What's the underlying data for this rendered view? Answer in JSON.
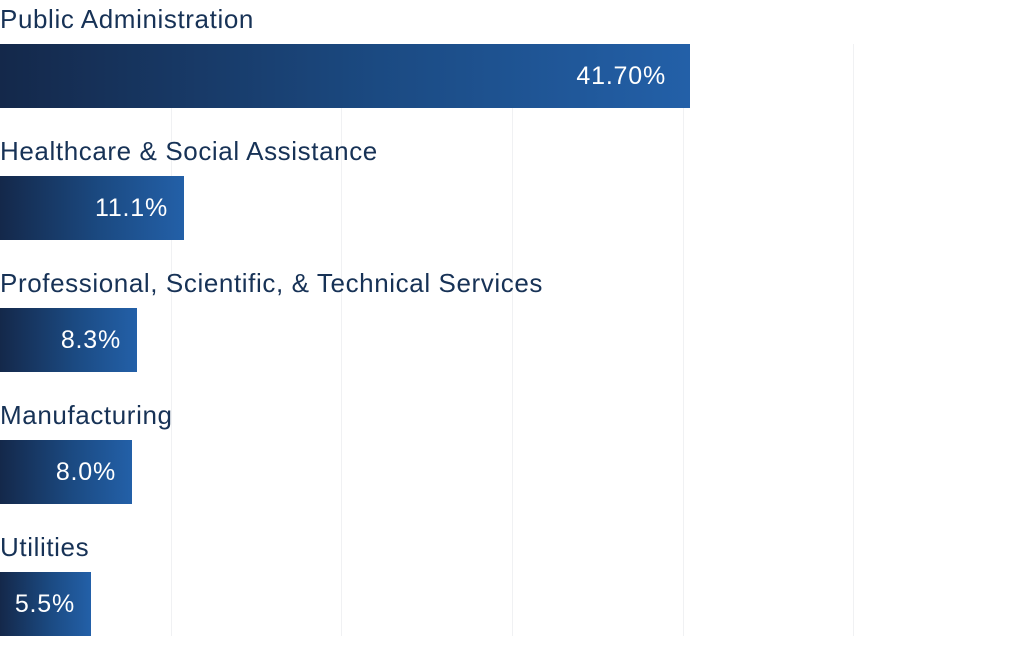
{
  "chart_data": {
    "type": "bar",
    "orientation": "horizontal",
    "title": "",
    "xlabel": "",
    "ylabel": "",
    "categories": [
      "Public Administration",
      "Healthcare & Social Assistance",
      "Professional, Scientific, & Technical Services",
      "Manufacturing",
      "Utilities"
    ],
    "values": [
      41.7,
      11.1,
      8.3,
      8.0,
      5.5
    ],
    "value_labels": [
      "41.70%",
      "11.1%",
      "8.3%",
      "8.0%",
      "5.5%"
    ],
    "xlim": [
      0,
      60
    ],
    "grid": true,
    "legend": "none",
    "colors": {
      "bar_start": "#14284a",
      "bar_end": "#2360a8",
      "label_text": "#173256",
      "value_text": "#ffffff",
      "grid": "#f0f1f3"
    }
  }
}
